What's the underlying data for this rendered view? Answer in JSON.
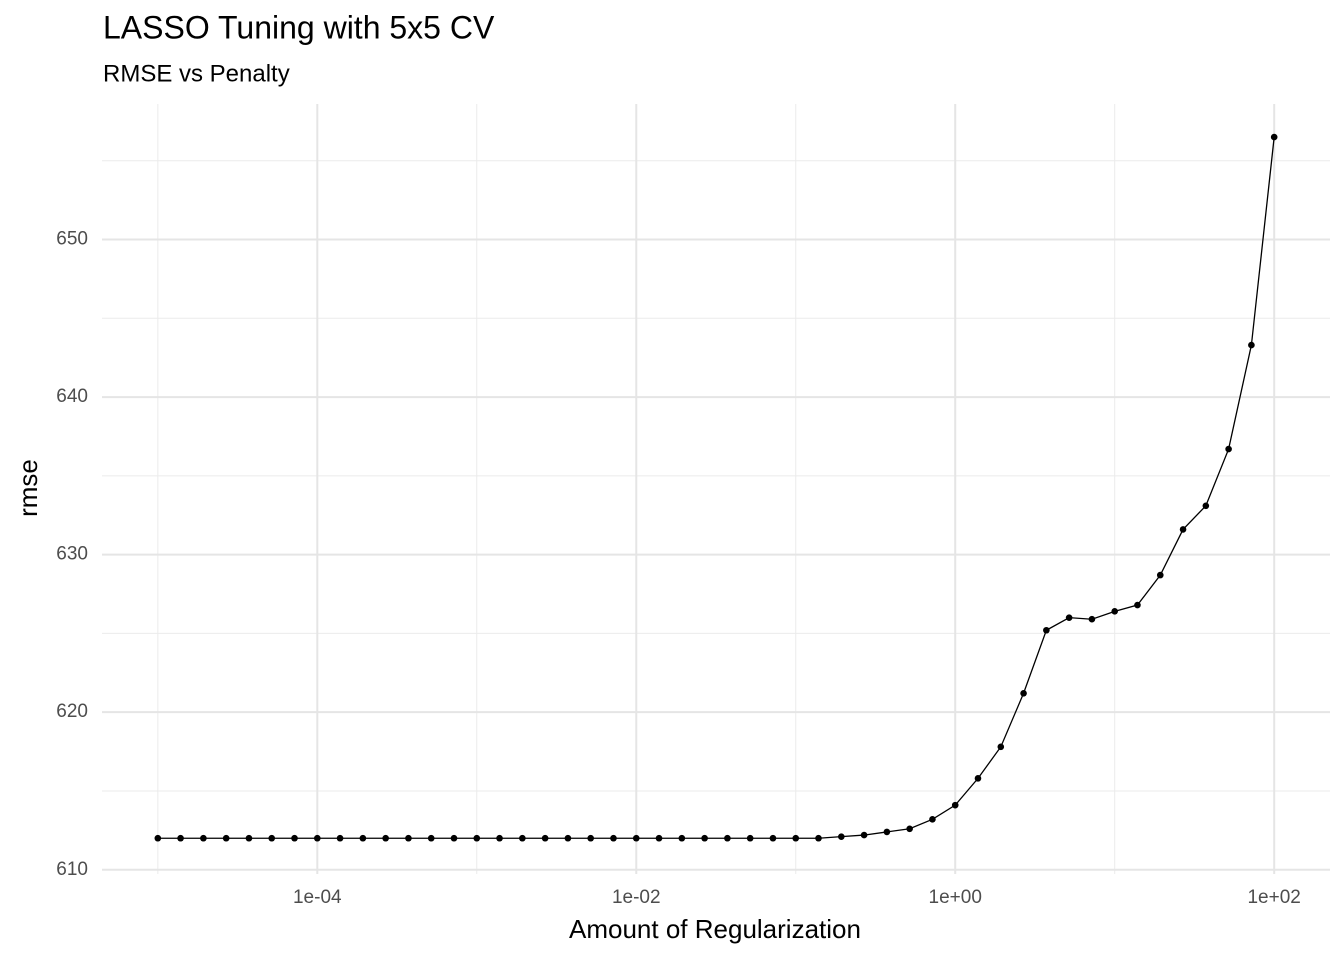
{
  "chart_data": {
    "type": "line",
    "title": "LASSO Tuning with 5x5 CV",
    "subtitle": "RMSE vs Penalty",
    "x_label": "Amount of Regularization",
    "y_label": "rmse",
    "x_log": true,
    "grid": true,
    "x": [
      1e-05,
      1.389e-05,
      1.931e-05,
      2.683e-05,
      3.728e-05,
      5.179e-05,
      7.197e-05,
      0.0001,
      0.0001389,
      0.0001931,
      0.0002683,
      0.0003728,
      0.0005179,
      0.0007197,
      0.001,
      0.001389,
      0.001931,
      0.002683,
      0.003728,
      0.005179,
      0.007197,
      0.01,
      0.01389,
      0.01931,
      0.02683,
      0.03728,
      0.05179,
      0.07197,
      0.1,
      0.1389,
      0.1931,
      0.2683,
      0.3728,
      0.5179,
      0.7197,
      1,
      1.389,
      1.931,
      2.683,
      3.728,
      5.179,
      7.197,
      10,
      13.89,
      19.31,
      26.83,
      37.28,
      51.79,
      71.97,
      100
    ],
    "series": [
      {
        "name": "rmse",
        "color": "#000000",
        "values": [
          612.0,
          612.0,
          612.0,
          612.0,
          612.0,
          612.0,
          612.0,
          612.0,
          612.0,
          612.0,
          612.0,
          612.0,
          612.0,
          612.0,
          612.0,
          612.0,
          612.0,
          612.0,
          612.0,
          612.0,
          612.0,
          612.0,
          612.0,
          612.0,
          612.0,
          612.0,
          612.0,
          612.0,
          612.0,
          612.0,
          612.1,
          612.2,
          612.4,
          612.6,
          613.2,
          614.1,
          615.8,
          617.8,
          621.2,
          625.2,
          626.0,
          625.9,
          626.4,
          626.8,
          628.7,
          631.6,
          633.1,
          636.7,
          643.3,
          656.5
        ]
      }
    ],
    "xlim": [
      4.4668e-06,
      223.87
    ],
    "xticks": [
      {
        "value": 0.0001,
        "label": "1e-04"
      },
      {
        "value": 0.01,
        "label": "1e-02"
      },
      {
        "value": 1,
        "label": "1e+00"
      },
      {
        "value": 100,
        "label": "1e+02"
      }
    ],
    "xminorticks": [
      1e-05,
      0.001,
      0.1,
      10
    ],
    "ylim": [
      609.73,
      658.6
    ],
    "yticks": [
      610,
      620,
      630,
      640,
      650
    ],
    "yminorticks": [
      615,
      625,
      635,
      645,
      655
    ]
  }
}
